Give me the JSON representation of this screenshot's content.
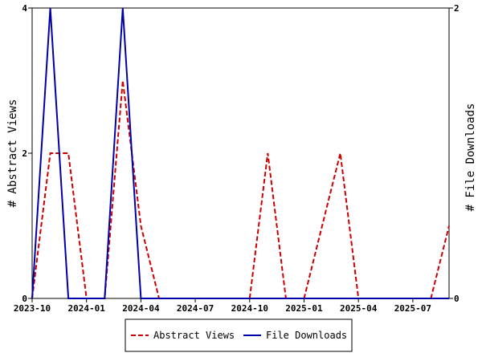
{
  "chart_data": {
    "type": "line",
    "title": "",
    "xlabel": "",
    "ylabel_left": "# Abstract Views",
    "ylabel_right": "# File Downloads",
    "x_ticks": [
      "2023-10",
      "2024-01",
      "2024-04",
      "2024-07",
      "2024-10",
      "2025-01",
      "2025-04",
      "2025-07"
    ],
    "x_range": [
      "2023-10",
      "2025-09"
    ],
    "y_left_range": [
      0,
      4
    ],
    "y_left_ticks": [
      "0",
      "2",
      "4"
    ],
    "y_right_range": [
      0,
      2
    ],
    "y_right_ticks": [
      "0",
      "2"
    ],
    "x": [
      "2023-10",
      "2023-11",
      "2023-12",
      "2024-01",
      "2024-02",
      "2024-03",
      "2024-04",
      "2024-05",
      "2024-06",
      "2024-07",
      "2024-08",
      "2024-09",
      "2024-10",
      "2024-11",
      "2024-12",
      "2025-01",
      "2025-02",
      "2025-03",
      "2025-04",
      "2025-05",
      "2025-06",
      "2025-07",
      "2025-08",
      "2025-09"
    ],
    "series": [
      {
        "name": "Abstract Views",
        "axis": "left",
        "color": "#cc0000",
        "style": "dashed",
        "values": [
          0,
          2,
          2,
          0,
          0,
          3,
          1,
          0,
          0,
          0,
          0,
          0,
          0,
          2,
          0,
          0,
          1,
          2,
          0,
          0,
          0,
          0,
          0,
          1
        ]
      },
      {
        "name": "File Downloads",
        "axis": "right",
        "color": "#0000aa",
        "style": "solid",
        "values": [
          0,
          2,
          0,
          0,
          0,
          2,
          0,
          0,
          0,
          0,
          0,
          0,
          0,
          0,
          0,
          0,
          0,
          0,
          0,
          0,
          0,
          0,
          0,
          0
        ]
      }
    ],
    "grid": false,
    "legend": "bottom-center"
  }
}
